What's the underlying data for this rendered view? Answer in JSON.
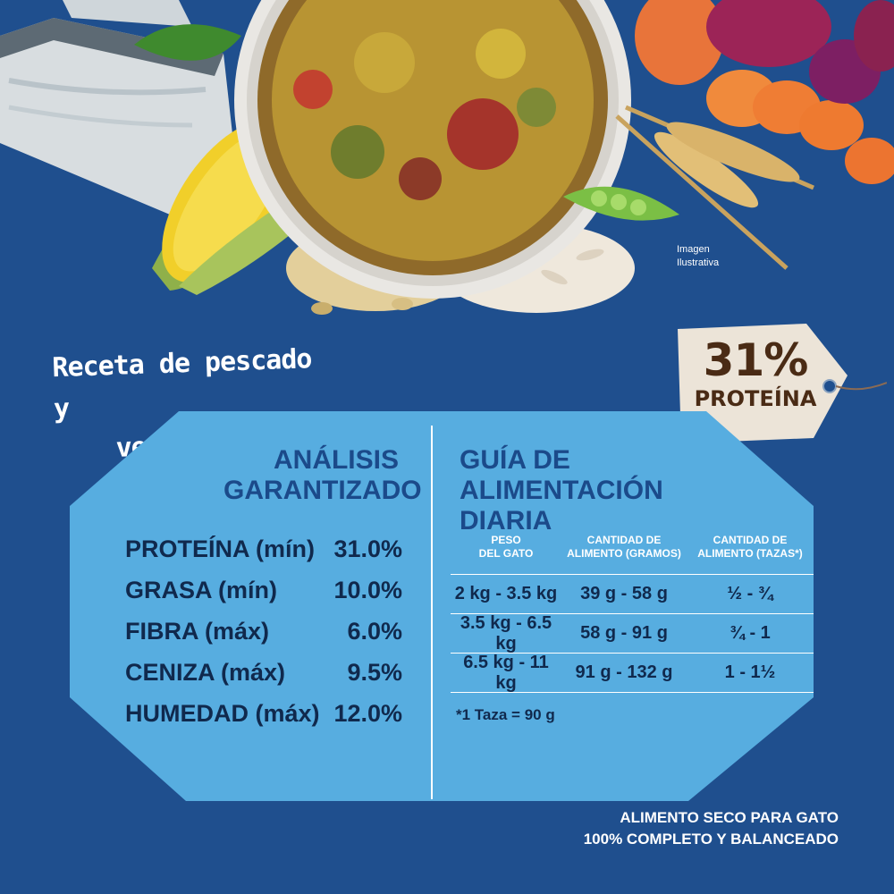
{
  "hero": {
    "caption_line1": "Imagen",
    "caption_line2": "Ilustrativa",
    "ingredients": [
      "fish-fillet",
      "corn-cob",
      "basil-leaf",
      "kibble-bowl",
      "oat-flakes",
      "rice-grains",
      "peas",
      "wheat-ears",
      "carrot-slices",
      "beet-slices"
    ]
  },
  "recipe": {
    "line1": "Receta de pescado y",
    "line2": "vegetales"
  },
  "tag": {
    "percent": "31%",
    "label": "PROTEÍNA"
  },
  "analysis": {
    "title_line1": "ANÁLISIS",
    "title_line2": "GARANTIZADO",
    "rows": [
      {
        "label": "PROTEÍNA (mín)",
        "value": "31.0%"
      },
      {
        "label": "GRASA (mín)",
        "value": "10.0%"
      },
      {
        "label": "FIBRA (máx)",
        "value": "6.0%"
      },
      {
        "label": "CENIZA (máx)",
        "value": "9.5%"
      },
      {
        "label": "HUMEDAD (máx)",
        "value": "12.0%"
      }
    ]
  },
  "guide": {
    "title_line1": "GUÍA DE",
    "title_line2": "ALIMENTACIÓN DIARIA",
    "headers": [
      {
        "line1": "PESO",
        "line2": "DEL GATO"
      },
      {
        "line1": "CANTIDAD DE",
        "line2": "ALIMENTO (GRAMOS)"
      },
      {
        "line1": "CANTIDAD DE",
        "line2": "ALIMENTO (TAZAS*)"
      }
    ],
    "rows": [
      {
        "weight": "2 kg - 3.5 kg",
        "grams": "39 g - 58 g",
        "cups": "½ - ¾"
      },
      {
        "weight": "3.5 kg - 6.5 kg",
        "grams": "58 g - 91 g",
        "cups": "¾ - 1"
      },
      {
        "weight": "6.5 kg - 11 kg",
        "grams": "91 g - 132 g",
        "cups": "1 - 1½"
      }
    ],
    "footnote": "*1 Taza = 90 g"
  },
  "footer": {
    "line1": "ALIMENTO SECO PARA GATO",
    "line2": "100% COMPLETO Y BALANCEADO"
  },
  "colors": {
    "background": "#1f4f8e",
    "panel": "#57ade0",
    "title": "#1b4a8a",
    "text_dark": "#10294d",
    "tag": "#ece4d8",
    "tag_text": "#4a2b15"
  }
}
